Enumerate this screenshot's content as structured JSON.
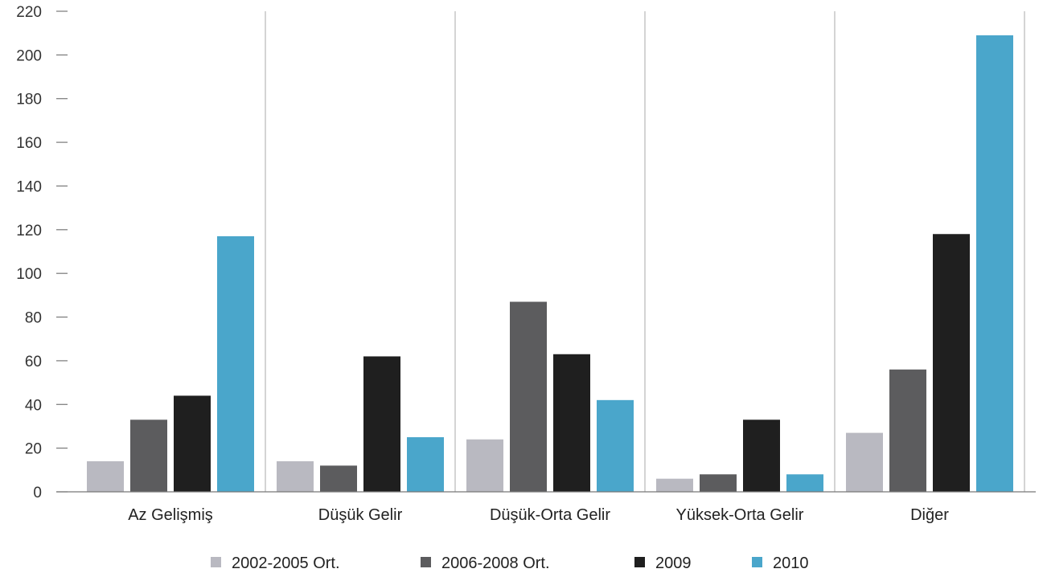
{
  "chart_data": {
    "type": "bar",
    "title": "",
    "xlabel": "",
    "ylabel": "",
    "ylim": [
      0,
      220
    ],
    "yticks": [
      0,
      20,
      40,
      60,
      80,
      100,
      120,
      140,
      160,
      180,
      200,
      220
    ],
    "categories": [
      "Az Gelişmiş",
      "Düşük Gelir",
      "Düşük-Orta Gelir",
      "Yüksek-Orta Gelir",
      "Diğer"
    ],
    "series": [
      {
        "name": "2002-2005 Ort.",
        "color": "#b9b9c1",
        "values": [
          14,
          14,
          24,
          6,
          27
        ]
      },
      {
        "name": "2006-2008 Ort.",
        "color": "#5c5c5e",
        "values": [
          33,
          12,
          87,
          8,
          56
        ]
      },
      {
        "name": "2009",
        "color": "#1f1f1f",
        "values": [
          44,
          62,
          63,
          33,
          118
        ]
      },
      {
        "name": "2010",
        "color": "#4aa6cb",
        "values": [
          117,
          25,
          42,
          8,
          209
        ]
      }
    ],
    "grid": false,
    "category_separators": true,
    "legend_position": "bottom"
  }
}
